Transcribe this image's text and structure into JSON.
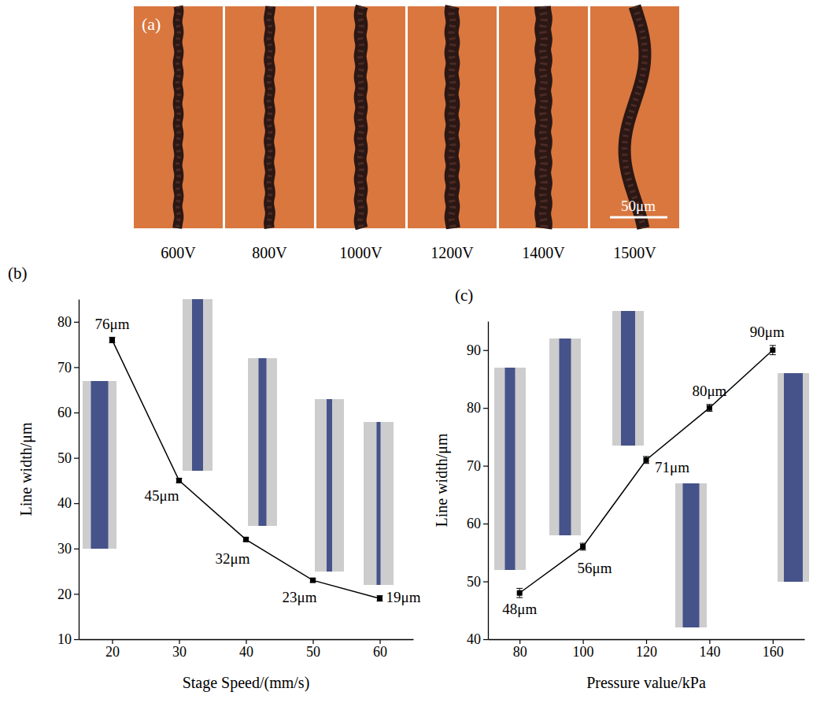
{
  "micrographs": {
    "panel_label": "(a)",
    "labels": [
      "600V",
      "800V",
      "1000V",
      "1200V",
      "1400V",
      "1500V"
    ],
    "scale_bar": "50μm"
  },
  "chart_data": [
    {
      "type": "line",
      "panel_label": "(b)",
      "x_label": "Stage Speed/(mm/s)",
      "y_label": "Line width/μm",
      "x": [
        20,
        30,
        40,
        50,
        60
      ],
      "values": [
        76,
        45,
        32,
        23,
        19
      ],
      "errors": [
        0.6,
        0.5,
        0.4,
        0.4,
        0.6
      ],
      "value_labels": [
        "76μm",
        "45μm",
        "32μm",
        "23μm",
        "19μm"
      ],
      "data_labels": true,
      "xlim": [
        15,
        65
      ],
      "ylim": [
        10,
        85
      ],
      "xticks": [
        20,
        30,
        40,
        50,
        60
      ],
      "yticks": [
        10,
        20,
        30,
        40,
        50,
        60,
        70,
        80
      ],
      "color": "#000000",
      "marker": "square",
      "grid": false
    },
    {
      "type": "line",
      "panel_label": "(c)",
      "x_label": "Pressure value/kPa",
      "y_label": "Line width/μm",
      "x": [
        80,
        100,
        120,
        140,
        160
      ],
      "values": [
        48,
        56,
        71,
        80,
        90
      ],
      "errors": [
        0.8,
        0.6,
        0.6,
        0.6,
        0.8
      ],
      "value_labels": [
        "48μm",
        "56μm",
        "71μm",
        "80μm",
        "90μm"
      ],
      "data_labels": true,
      "xlim": [
        70,
        170
      ],
      "ylim": [
        40,
        95
      ],
      "xticks": [
        80,
        100,
        120,
        140,
        160
      ],
      "yticks": [
        40,
        50,
        60,
        70,
        80,
        90
      ],
      "color": "#000000",
      "marker": "square",
      "grid": false
    }
  ]
}
